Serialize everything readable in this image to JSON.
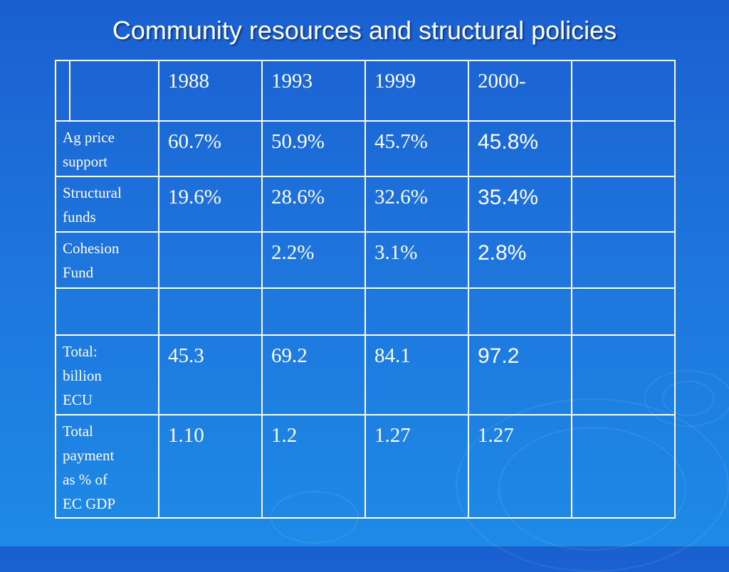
{
  "title": "Community resources and structural policies",
  "table": {
    "headers": [
      "",
      "1988",
      "1993",
      "1999",
      "2000-",
      ""
    ],
    "rows": [
      {
        "label_lines": [
          "Ag price",
          "support"
        ],
        "values": [
          "60.7%",
          "50.9%",
          "45.7%",
          "45.8%",
          ""
        ]
      },
      {
        "label_lines": [
          "Structural",
          "funds"
        ],
        "values": [
          "19.6%",
          "28.6%",
          "32.6%",
          "35.4%",
          ""
        ]
      },
      {
        "label_lines": [
          "Cohesion",
          "Fund"
        ],
        "values": [
          "",
          "2.2%",
          "3.1%",
          "2.8%",
          ""
        ]
      },
      {
        "label_lines": [
          ""
        ],
        "values": [
          "",
          "",
          "",
          "",
          ""
        ]
      },
      {
        "label_lines": [
          "Total:",
          "billion",
          "ECU"
        ],
        "values": [
          "45.3",
          "69.2",
          "84.1",
          "97.2",
          ""
        ]
      },
      {
        "label_lines": [
          "Total",
          "payment",
          "as % of",
          "EC GDP"
        ],
        "values": [
          "1.10",
          "1.2",
          "1.27",
          "1.27",
          ""
        ]
      }
    ]
  },
  "colors": {
    "background_top": "#1a5fd0",
    "background_bottom": "#1e8ae6",
    "text": "#ffffff",
    "grid": "#ffffff"
  }
}
